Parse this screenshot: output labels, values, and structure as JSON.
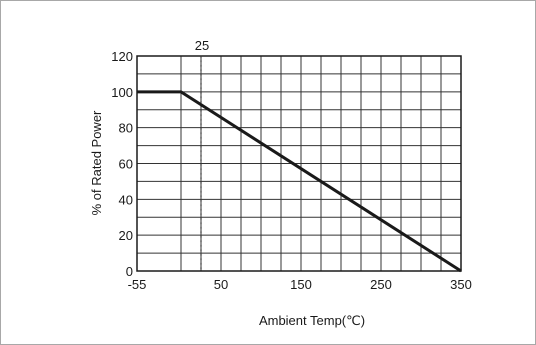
{
  "chart_data": {
    "type": "line",
    "title": "",
    "xlabel": "Ambient Temp(℃)",
    "ylabel": "% of Rated Power",
    "xlim": [
      -55,
      350
    ],
    "ylim": [
      0,
      120
    ],
    "x_ticks": [
      -55,
      50,
      150,
      250,
      350
    ],
    "x_tick_labels": [
      "-55",
      "50",
      "150",
      "250",
      "350"
    ],
    "y_ticks": [
      0,
      20,
      40,
      60,
      80,
      100,
      120
    ],
    "y_tick_labels": [
      "0",
      "20",
      "40",
      "60",
      "80",
      "100",
      "120"
    ],
    "x_minor_step": 25,
    "y_minor_step": 10,
    "grid": true,
    "reference_line": {
      "x": 25,
      "label": "25",
      "style": "dotted"
    },
    "series": [
      {
        "x": [
          -55,
          0,
          350
        ],
        "y": [
          100,
          100,
          0
        ]
      }
    ],
    "colors": {
      "line": "#1a1a1a",
      "grid": "#333333",
      "frame": "#a8a8a8"
    }
  }
}
